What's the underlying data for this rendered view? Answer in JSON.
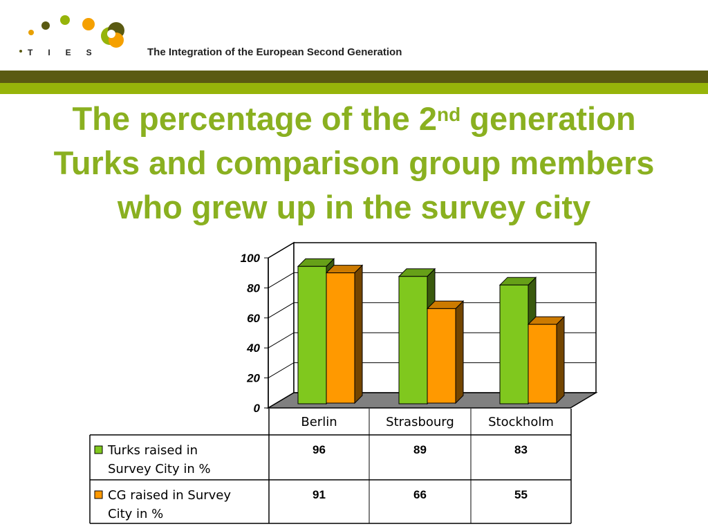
{
  "header": {
    "logo_text": "T I E S",
    "tagline": "The Integration of the European Second Generation"
  },
  "slide": {
    "title_line1_pre": "The percentage of the 2",
    "title_line1_sup": "nd",
    "title_line1_post": " generation",
    "title_line2": "Turks and comparison group members",
    "title_line3": "who grew up in the survey city"
  },
  "colors": {
    "band_dark": "#5a5a12",
    "band_light": "#96b40a",
    "title": "#8ab020",
    "series_turks": "#80c81e",
    "series_cg": "#ff9900"
  },
  "chart_data": {
    "type": "bar",
    "categories": [
      "Berlin",
      "Strasbourg",
      "Stockholm"
    ],
    "series": [
      {
        "name": "Turks raised in Survey City in %",
        "values": [
          96,
          89,
          83
        ]
      },
      {
        "name": "CG raised in Survey City in %",
        "values": [
          91,
          66,
          55
        ]
      }
    ],
    "ylim": [
      0,
      100
    ],
    "yticks": [
      0,
      20,
      40,
      60,
      80,
      100
    ],
    "grid": true,
    "legend": "data table below chart",
    "table_values": {
      "turks": [
        "96",
        "89",
        "83"
      ],
      "cg": [
        "91",
        "66",
        "55"
      ]
    }
  }
}
